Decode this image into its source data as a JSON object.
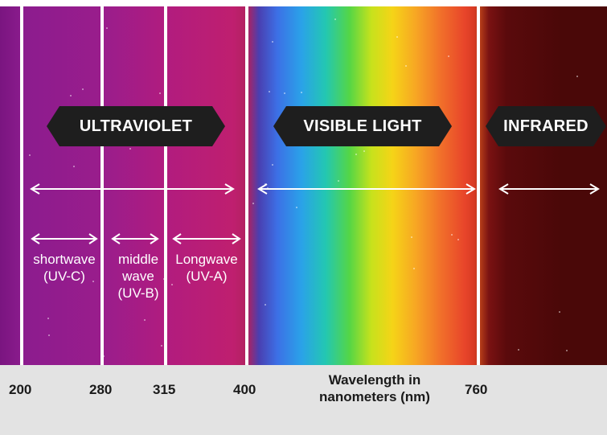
{
  "regions": {
    "ultraviolet": {
      "label": "ULTRAVIOLET"
    },
    "visible": {
      "label": "VISIBLE LIGHT"
    },
    "infrared": {
      "label": "INFRARED"
    }
  },
  "uv_bands": [
    {
      "line1": "shortwave",
      "line2": "(UV-C)"
    },
    {
      "line1": "middle",
      "line2": "wave",
      "line3": "(UV-B)"
    },
    {
      "line1": "Longwave",
      "line2": "(UV-A)"
    }
  ],
  "axis": {
    "title_line1": "Wavelength in",
    "title_line2": "nanometers (nm)",
    "ticks": [
      "200",
      "280",
      "315",
      "400",
      "760"
    ]
  },
  "colors": {
    "banner_bg": "#1e1e1e",
    "axis_bg": "#e3e3e3",
    "ultraviolet": "#9a1d8c",
    "infrared": "#4a0808"
  }
}
